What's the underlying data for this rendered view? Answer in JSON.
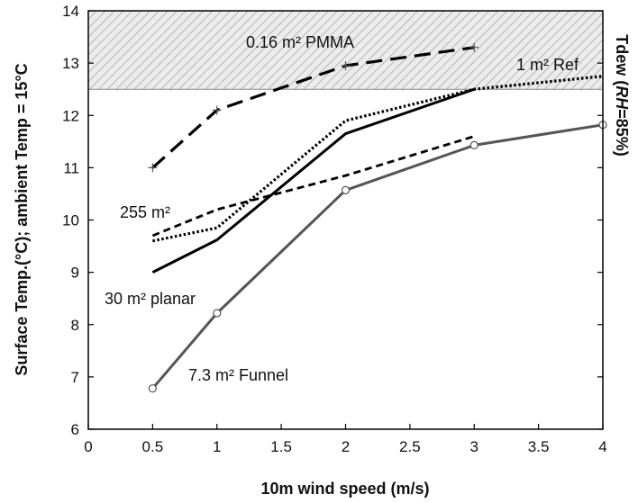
{
  "chart_data": {
    "type": "line",
    "xlabel": "10m wind speed (m/s)",
    "ylabel": "Surface Temp.(°C); ambient Temp = 15°C",
    "y2label": {
      "prefix": "Tdew (",
      "italic": "RH",
      "suffix": "=85%)"
    },
    "xlim": [
      0,
      4
    ],
    "ylim": [
      6,
      14
    ],
    "xticks": [
      "0",
      "0.5",
      "1",
      "1.5",
      "2",
      "2.5",
      "3",
      "3.5",
      "4"
    ],
    "yticks": [
      "6",
      "7",
      "8",
      "9",
      "10",
      "11",
      "12",
      "13",
      "14"
    ],
    "grid": false,
    "shaded_band": {
      "y_from": 12.5,
      "y_to": 14,
      "fill": "hatched-gray"
    },
    "series": [
      {
        "name": "0.16 m² PMMA",
        "style": "long-dash",
        "color": "#000000",
        "marker": "plus",
        "x": [
          0.5,
          1,
          2,
          3
        ],
        "values": [
          11.0,
          12.1,
          12.95,
          13.3
        ]
      },
      {
        "name": "1 m² Ref",
        "style": "dotted",
        "color": "#000000",
        "x": [
          0.5,
          1,
          2,
          3,
          4
        ],
        "values": [
          9.6,
          9.85,
          11.9,
          12.5,
          12.75
        ]
      },
      {
        "name": "255 m²",
        "style": "short-dash",
        "color": "#000000",
        "x": [
          0.5,
          1,
          2,
          3
        ],
        "values": [
          9.7,
          10.2,
          10.85,
          11.6
        ]
      },
      {
        "name": "30 m² planar",
        "style": "solid",
        "color": "#000000",
        "x": [
          0.5,
          1,
          2,
          3
        ],
        "values": [
          9.0,
          9.62,
          11.65,
          12.5
        ]
      },
      {
        "name": "7.3 m² Funnel",
        "style": "solid",
        "color": "#555555",
        "marker": "open-circle",
        "x": [
          0.5,
          1,
          2,
          3,
          4
        ],
        "values": [
          6.78,
          8.22,
          10.57,
          11.43,
          11.82
        ]
      }
    ]
  }
}
